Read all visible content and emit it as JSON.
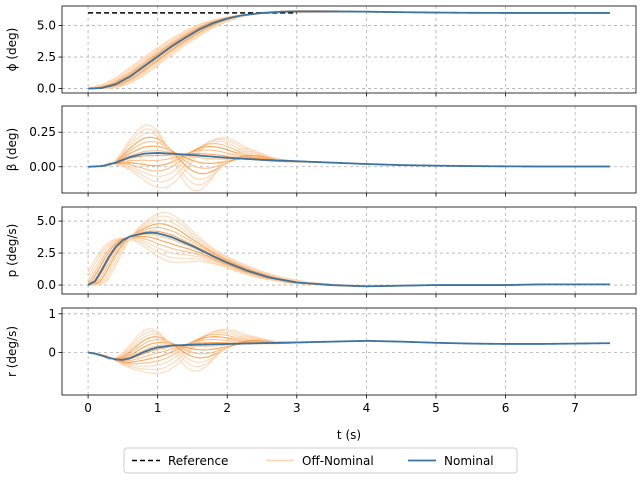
{
  "chart_data": {
    "type": "line",
    "xlabel": "t (s)",
    "x_ticks": [
      0,
      1,
      2,
      3,
      4,
      5,
      6,
      7
    ],
    "xlim": [
      -0.375,
      7.875
    ],
    "grid": true,
    "legend": {
      "placement": "bottom-center",
      "entries": [
        {
          "name": "Reference",
          "color": "#000000",
          "style": "dashed"
        },
        {
          "name": "Off-Nominal",
          "color": "#fdd9b8",
          "style": "solid"
        },
        {
          "name": "Nominal",
          "color": "#3a74a2",
          "style": "solid"
        }
      ]
    },
    "colors": {
      "nominal": "#3a74a2",
      "off_nominal": "#ff7f0e",
      "reference": "#000000",
      "grid": "#b0b0b0"
    },
    "panels": [
      {
        "id": "phi",
        "ylabel": "ϕ (deg)",
        "ylim": [
          -0.35,
          6.55
        ],
        "y_ticks": [
          0.0,
          2.5,
          5.0
        ],
        "y_tick_labels": [
          "0.0",
          "2.5",
          "5.0"
        ],
        "reference": {
          "x": [
            0,
            3.0
          ],
          "y": [
            6.0,
            6.0
          ]
        },
        "nominal": {
          "x": [
            0,
            0.2,
            0.4,
            0.6,
            0.8,
            1.0,
            1.2,
            1.4,
            1.6,
            1.8,
            2.0,
            2.2,
            2.5,
            2.8,
            3.0,
            3.5,
            4.0,
            4.5,
            5.0,
            5.5,
            6.0,
            6.5,
            7.0,
            7.5
          ],
          "y": [
            0,
            0.05,
            0.35,
            0.95,
            1.75,
            2.55,
            3.35,
            4.05,
            4.7,
            5.2,
            5.55,
            5.8,
            6.0,
            6.1,
            6.12,
            6.12,
            6.1,
            6.06,
            6.03,
            6.01,
            6.0,
            6.0,
            6.0,
            6.0
          ]
        },
        "off_nominal": {
          "variation": "phase",
          "amplitude": 0.12,
          "count": 12
        }
      },
      {
        "id": "beta",
        "ylabel": "β (deg)",
        "ylim": [
          -0.19,
          0.44
        ],
        "y_ticks": [
          0.0,
          0.25
        ],
        "y_tick_labels": [
          "0.00",
          "0.25"
        ],
        "nominal": {
          "x": [
            0,
            0.2,
            0.4,
            0.6,
            0.8,
            1.0,
            1.2,
            1.5,
            2.0,
            2.5,
            3.0,
            3.5,
            4.0,
            4.5,
            5.0,
            5.5,
            6.0,
            6.5,
            7.0,
            7.5
          ],
          "y": [
            0,
            0.005,
            0.03,
            0.07,
            0.095,
            0.1,
            0.095,
            0.085,
            0.065,
            0.05,
            0.04,
            0.03,
            0.02,
            0.012,
            0.008,
            0.005,
            0.003,
            0.002,
            0.002,
            0.002
          ]
        },
        "off_nominal": {
          "variation": "oscillation",
          "amplitude": 0.28,
          "count": 14
        }
      },
      {
        "id": "p",
        "ylabel": "p (deg/s)",
        "ylim": [
          -0.7,
          6.1
        ],
        "y_ticks": [
          0.0,
          2.5,
          5.0
        ],
        "y_tick_labels": [
          "0.0",
          "2.5",
          "5.0"
        ],
        "nominal": {
          "x": [
            0,
            0.1,
            0.2,
            0.3,
            0.4,
            0.5,
            0.6,
            0.8,
            0.9,
            1.0,
            1.2,
            1.5,
            1.8,
            2.0,
            2.3,
            2.6,
            3.0,
            3.5,
            4.0,
            4.5,
            5.0,
            5.5,
            6.0,
            6.5,
            7.0,
            7.5
          ],
          "y": [
            0,
            0.3,
            1.2,
            2.2,
            3.0,
            3.5,
            3.8,
            4.05,
            4.1,
            4.05,
            3.75,
            3.05,
            2.25,
            1.75,
            1.1,
            0.6,
            0.2,
            0.0,
            -0.1,
            -0.05,
            0.0,
            0.0,
            0.0,
            0.05,
            0.05,
            0.05
          ]
        },
        "off_nominal": {
          "variation": "peak",
          "amplitude": 1.6,
          "count": 12
        }
      },
      {
        "id": "r",
        "ylabel": "r (deg/s)",
        "ylim": [
          -1.1,
          1.15
        ],
        "y_ticks": [
          0,
          1
        ],
        "y_tick_labels": [
          "0",
          "1"
        ],
        "nominal": {
          "x": [
            0,
            0.1,
            0.2,
            0.3,
            0.4,
            0.5,
            0.6,
            0.7,
            0.8,
            0.9,
            1.0,
            1.2,
            1.5,
            2.0,
            2.5,
            3.0,
            3.5,
            4.0,
            4.5,
            5.0,
            5.5,
            6.0,
            6.5,
            7.0,
            7.5
          ],
          "y": [
            0,
            -0.03,
            -0.08,
            -0.14,
            -0.18,
            -0.19,
            -0.15,
            -0.07,
            0.01,
            0.08,
            0.13,
            0.18,
            0.2,
            0.22,
            0.24,
            0.26,
            0.28,
            0.3,
            0.28,
            0.25,
            0.23,
            0.22,
            0.22,
            0.23,
            0.24
          ]
        },
        "off_nominal": {
          "variation": "oscillation",
          "amplitude": 0.75,
          "count": 14
        }
      }
    ]
  }
}
